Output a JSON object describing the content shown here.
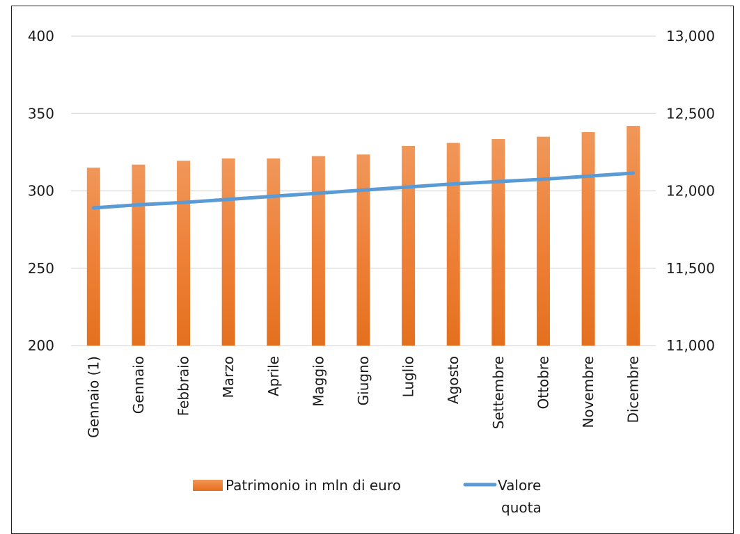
{
  "chart_data": {
    "type": "bar",
    "title": "",
    "xlabel": "",
    "ylabel": "",
    "categories": [
      "Gennaio (1)",
      "Gennaio",
      "Febbraio",
      "Marzo",
      "Aprile",
      "Maggio",
      "Giugno",
      "Luglio",
      "Agosto",
      "Settembre",
      "Ottobre",
      "Novembre",
      "Dicembre"
    ],
    "ylim": [
      200,
      400
    ],
    "y2lim": [
      11000,
      13000
    ],
    "yticks": [
      "200",
      "250",
      "300",
      "350",
      "400"
    ],
    "y2ticks": [
      "11,000",
      "11,500",
      "12,000",
      "12,500",
      "13,000"
    ],
    "series": [
      {
        "name": "Patrimonio in mln di euro",
        "type": "bar",
        "axis": "left",
        "color": "#ED7D31",
        "values": [
          315,
          317,
          319.5,
          321,
          321,
          322.5,
          323.5,
          329,
          331,
          333.5,
          335,
          338,
          342
        ]
      },
      {
        "name": "Valore quota",
        "type": "line",
        "axis": "right",
        "color": "#5B9BD5",
        "values": [
          11890,
          11910,
          11925,
          11945,
          11965,
          11985,
          12005,
          12025,
          12045,
          12060,
          12075,
          12095,
          12115
        ]
      }
    ],
    "grid": true,
    "legend_position": "bottom",
    "legend": [
      {
        "label": "Patrimonio in mln di euro",
        "color": "#ED7D31"
      },
      {
        "label": "Valore quota",
        "label_lines": [
          "Valore",
          "quota"
        ],
        "color": "#5B9BD5"
      }
    ]
  }
}
